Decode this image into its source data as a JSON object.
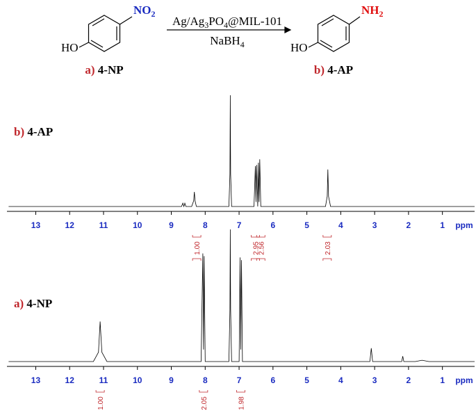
{
  "scheme": {
    "left_group": [
      "NO",
      "2"
    ],
    "left_oh": "HO",
    "reagent": [
      "Ag/Ag",
      "3",
      "PO",
      "4",
      "@MIL-101"
    ],
    "reductant": [
      "NaBH",
      "4"
    ],
    "right_group": [
      "NH",
      "2"
    ],
    "right_oh": "HO",
    "left_caption": [
      "a)",
      "4-NP"
    ],
    "right_caption": [
      "b)",
      "4-AP"
    ]
  },
  "chart_data": [
    {
      "type": "line",
      "label_letter": "b)",
      "label_name": "4-AP",
      "x_label": "ppm",
      "color": "#000000",
      "xlim": [
        13.85,
        0.05
      ],
      "xticks": [
        13,
        12,
        11,
        10,
        9,
        8,
        7,
        6,
        5,
        4,
        3,
        2,
        1
      ],
      "ylim": [
        -4,
        100
      ],
      "x": [
        13.8,
        9.0,
        8.7,
        8.66,
        8.63,
        8.6,
        8.57,
        8.4,
        8.34,
        8.32,
        8.3,
        8.26,
        7.3,
        7.27,
        7.26,
        7.25,
        7.22,
        6.56,
        6.52,
        6.5,
        6.48,
        6.45,
        6.43,
        6.41,
        6.39,
        6.36,
        6.32,
        4.45,
        4.4,
        4.38,
        4.36,
        4.3,
        0.05
      ],
      "values": [
        1,
        1,
        1,
        4,
        1,
        4,
        1,
        1,
        6,
        14,
        6,
        1,
        1,
        30,
        100,
        30,
        1,
        1,
        37,
        5,
        38,
        1,
        40,
        5,
        43,
        1,
        1,
        1,
        10,
        34,
        10,
        1,
        1
      ],
      "integrals": {
        "x": [
          8.25,
          6.52,
          6.36,
          4.4
        ],
        "values": [
          1.0,
          2.95,
          2.56,
          2.03
        ],
        "value_labels": [
          "1.00",
          "2.95",
          "2.56",
          "2.03"
        ]
      }
    },
    {
      "type": "line",
      "label_letter": "a)",
      "label_name": "4-NP",
      "x_label": "ppm",
      "color": "#000000",
      "xlim": [
        13.85,
        0.05
      ],
      "xticks": [
        13,
        12,
        11,
        10,
        9,
        8,
        7,
        6,
        5,
        4,
        3,
        2,
        1
      ],
      "ylim": [
        -4,
        100
      ],
      "x": [
        13.8,
        11.3,
        11.15,
        11.1,
        11.05,
        10.9,
        8.12,
        8.07,
        8.05,
        8.03,
        8.0,
        7.3,
        7.27,
        7.26,
        7.25,
        7.22,
        7.0,
        6.97,
        6.95,
        6.93,
        6.9,
        3.14,
        3.1,
        3.06,
        2.2,
        2.17,
        2.14,
        1.8,
        1.6,
        1.4,
        0.05
      ],
      "values": [
        1,
        1,
        8,
        31,
        8,
        1,
        1,
        82,
        10,
        80,
        1,
        1,
        40,
        100,
        40,
        1,
        1,
        79,
        10,
        77,
        1,
        1,
        11,
        1,
        1,
        5,
        1,
        1,
        2,
        1,
        1
      ],
      "integrals": {
        "x": [
          11.1,
          8.05,
          6.95
        ],
        "values": [
          1.0,
          2.05,
          1.98
        ],
        "value_labels": [
          "1.00",
          "2.05",
          "1.98"
        ]
      }
    }
  ]
}
